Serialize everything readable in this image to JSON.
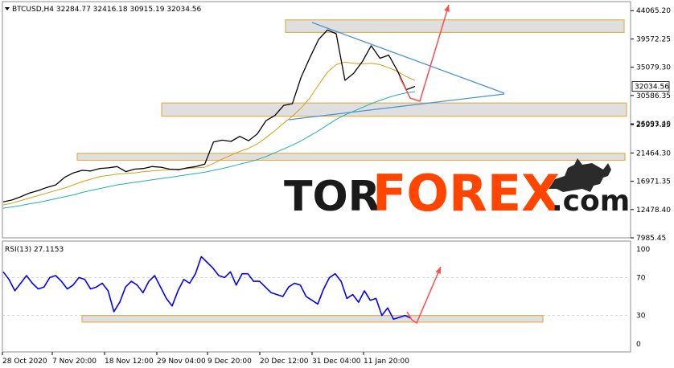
{
  "header": {
    "symbol_info": "BTCUSD,H4  32284.77 32416.18 30915.19 32034.56"
  },
  "watermark": {
    "part1": "TOR",
    "part2": "FOREX",
    "part3": ".com",
    "color_dark": "#1a1a1a",
    "color_accent": "#ff4500"
  },
  "colors": {
    "price_line": "#000000",
    "ma_fast": "#d4a017",
    "ma_slow": "#20b2aa",
    "trendline": "#4a90d9",
    "arrow": "#ff4d4d",
    "rsi_line": "#0000ff",
    "zone_fill": "#d9d9d9",
    "zone_border": "#e0b050",
    "grid": "#c8c8c8"
  },
  "chart_data": [
    {
      "type": "line",
      "title": "",
      "ylim": [
        7985.45,
        45500
      ],
      "y_ticks": [
        "44065.20",
        "39572.25",
        "35079.30",
        "30586.35",
        "26093.40",
        "25957.25",
        "21464.30",
        "16971.35",
        "12478.40",
        "7985.45"
      ],
      "last_price_label": "32034.56",
      "x_ticks": [
        "28 Oct 2020",
        "7 Nov 20:00",
        "18 Nov 12:00",
        "29 Nov 04:00",
        "9 Dec 20:00",
        "20 Dec 12:00",
        "31 Dec 04:00",
        "11 Jan 20:00"
      ],
      "series": [
        {
          "values": [
            13700,
            14000,
            14500,
            15100,
            15500,
            16000,
            16400,
            17600,
            18300,
            18700,
            18600,
            19000,
            19100,
            19300,
            18500,
            18900,
            19000,
            19300,
            19200,
            18900,
            18800,
            19100,
            19300,
            19700,
            23200,
            23500,
            23300,
            24100,
            23400,
            24500,
            26600,
            27400,
            29000,
            29300,
            33500,
            36600,
            39500,
            41000,
            40400,
            33000,
            34100,
            36000,
            38500,
            36500,
            37000,
            34500,
            31500,
            32034
          ]
        }
      ],
      "moving_averages": [
        {
          "values": [
            13200,
            13500,
            13900,
            14300,
            14700,
            15100,
            15500,
            15900,
            16400,
            16900,
            17300,
            17700,
            17900,
            18100,
            18200,
            18300,
            18500,
            18600,
            18700,
            18800,
            18900,
            19000,
            19100,
            19200,
            19800,
            20500,
            21100,
            21700,
            22200,
            22900,
            23900,
            25000,
            26200,
            27300,
            28600,
            30200,
            32300,
            34300,
            35500,
            35900,
            35700,
            35600,
            35700,
            35500,
            35000,
            34400,
            33600,
            33000
          ]
        },
        {
          "values": [
            12700,
            12900,
            13100,
            13400,
            13600,
            13900,
            14200,
            14500,
            14800,
            15200,
            15500,
            15800,
            16100,
            16400,
            16600,
            16800,
            17000,
            17200,
            17400,
            17600,
            17800,
            18000,
            18200,
            18400,
            18700,
            19000,
            19300,
            19700,
            20000,
            20400,
            20900,
            21500,
            22100,
            22700,
            23400,
            24200,
            25000,
            25900,
            26800,
            27500,
            28100,
            28700,
            29300,
            29800,
            30300,
            30700,
            31000,
            31200
          ]
        }
      ],
      "resistance_zones": [
        [
          40600,
          42600
        ],
        [
          27300,
          29400
        ],
        [
          20300,
          21400
        ]
      ]
    },
    {
      "type": "line",
      "title": "RSI(13) 27.1153",
      "ylim": [
        0,
        100
      ],
      "y_ticks": [
        "100",
        "70",
        "30",
        "0"
      ],
      "series": [
        {
          "values": [
            76,
            68,
            56,
            64,
            72,
            64,
            58,
            60,
            70,
            72,
            66,
            58,
            62,
            70,
            68,
            58,
            60,
            64,
            56,
            34,
            44,
            60,
            66,
            62,
            54,
            66,
            72,
            60,
            48,
            40,
            56,
            68,
            64,
            74,
            92,
            86,
            80,
            72,
            70,
            76,
            62,
            74,
            74,
            66,
            66,
            60,
            54,
            52,
            50,
            60,
            64,
            62,
            50,
            46,
            42,
            58,
            70,
            74,
            66,
            48,
            52,
            44,
            56,
            46,
            48,
            30,
            38,
            26,
            28,
            30,
            27
          ]
        }
      ],
      "zones": [
        [
          23,
          30
        ]
      ]
    }
  ]
}
